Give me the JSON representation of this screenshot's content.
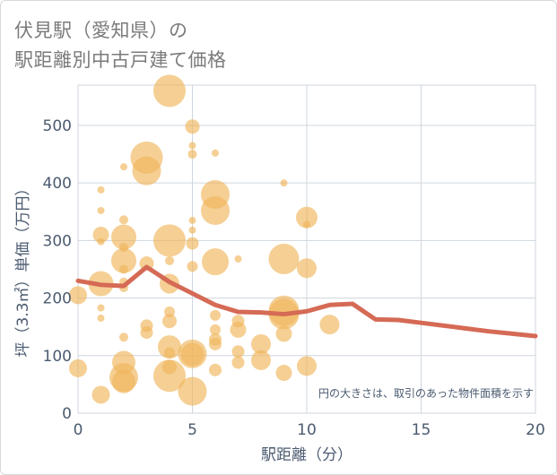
{
  "chart_data": {
    "type": "scatter",
    "title_lines": [
      "伏見駅（愛知県）の",
      "駅距離別中古戸建て価格"
    ],
    "xlabel": "駅距離（分）",
    "ylabel": "坪（3.3㎡）単価（万円）",
    "xlim": [
      0,
      20
    ],
    "ylim": [
      0,
      570
    ],
    "xticks": [
      0,
      5,
      10,
      15,
      20
    ],
    "yticks": [
      0,
      100,
      200,
      300,
      400,
      500
    ],
    "note": "円の大きさは、取引のあった物件面積を示す",
    "bubble_color": "#f0b65a",
    "line_color": "#d56a55",
    "points": [
      {
        "x": 0,
        "y": 205,
        "s": 10
      },
      {
        "x": 0,
        "y": 78,
        "s": 10
      },
      {
        "x": 1,
        "y": 388,
        "s": 4
      },
      {
        "x": 1,
        "y": 352,
        "s": 4
      },
      {
        "x": 1,
        "y": 310,
        "s": 9
      },
      {
        "x": 1,
        "y": 298,
        "s": 4
      },
      {
        "x": 1,
        "y": 225,
        "s": 14
      },
      {
        "x": 1,
        "y": 183,
        "s": 4
      },
      {
        "x": 1,
        "y": 165,
        "s": 4
      },
      {
        "x": 1,
        "y": 32,
        "s": 10
      },
      {
        "x": 2,
        "y": 428,
        "s": 4
      },
      {
        "x": 2,
        "y": 336,
        "s": 5
      },
      {
        "x": 2,
        "y": 306,
        "s": 14
      },
      {
        "x": 2,
        "y": 288,
        "s": 5
      },
      {
        "x": 2,
        "y": 265,
        "s": 14
      },
      {
        "x": 2,
        "y": 250,
        "s": 5
      },
      {
        "x": 2,
        "y": 228,
        "s": 5
      },
      {
        "x": 2,
        "y": 218,
        "s": 5
      },
      {
        "x": 2,
        "y": 132,
        "s": 5
      },
      {
        "x": 2,
        "y": 88,
        "s": 13
      },
      {
        "x": 2,
        "y": 62,
        "s": 16
      },
      {
        "x": 2,
        "y": 55,
        "s": 13
      },
      {
        "x": 3,
        "y": 444,
        "s": 18
      },
      {
        "x": 3,
        "y": 421,
        "s": 16
      },
      {
        "x": 3,
        "y": 260,
        "s": 8
      },
      {
        "x": 3,
        "y": 152,
        "s": 7
      },
      {
        "x": 3,
        "y": 140,
        "s": 7
      },
      {
        "x": 4,
        "y": 560,
        "s": 18
      },
      {
        "x": 4,
        "y": 300,
        "s": 18
      },
      {
        "x": 4,
        "y": 265,
        "s": 5
      },
      {
        "x": 4,
        "y": 225,
        "s": 11
      },
      {
        "x": 4,
        "y": 176,
        "s": 6
      },
      {
        "x": 4,
        "y": 160,
        "s": 8
      },
      {
        "x": 4,
        "y": 115,
        "s": 13
      },
      {
        "x": 4,
        "y": 105,
        "s": 6
      },
      {
        "x": 4,
        "y": 80,
        "s": 8
      },
      {
        "x": 4,
        "y": 65,
        "s": 18
      },
      {
        "x": 5,
        "y": 498,
        "s": 8
      },
      {
        "x": 5,
        "y": 465,
        "s": 4
      },
      {
        "x": 5,
        "y": 450,
        "s": 5
      },
      {
        "x": 5,
        "y": 335,
        "s": 4
      },
      {
        "x": 5,
        "y": 318,
        "s": 4
      },
      {
        "x": 5,
        "y": 295,
        "s": 7
      },
      {
        "x": 5,
        "y": 255,
        "s": 6
      },
      {
        "x": 5,
        "y": 103,
        "s": 16
      },
      {
        "x": 5,
        "y": 102,
        "s": 13
      },
      {
        "x": 5,
        "y": 38,
        "s": 16
      },
      {
        "x": 6,
        "y": 452,
        "s": 4
      },
      {
        "x": 6,
        "y": 380,
        "s": 16
      },
      {
        "x": 6,
        "y": 352,
        "s": 16
      },
      {
        "x": 6,
        "y": 263,
        "s": 15
      },
      {
        "x": 6,
        "y": 170,
        "s": 6
      },
      {
        "x": 6,
        "y": 145,
        "s": 6
      },
      {
        "x": 6,
        "y": 128,
        "s": 7
      },
      {
        "x": 6,
        "y": 120,
        "s": 7
      },
      {
        "x": 6,
        "y": 75,
        "s": 7
      },
      {
        "x": 7,
        "y": 268,
        "s": 4
      },
      {
        "x": 7,
        "y": 160,
        "s": 7
      },
      {
        "x": 7,
        "y": 145,
        "s": 9
      },
      {
        "x": 7,
        "y": 107,
        "s": 7
      },
      {
        "x": 7,
        "y": 88,
        "s": 7
      },
      {
        "x": 8,
        "y": 120,
        "s": 11
      },
      {
        "x": 8,
        "y": 92,
        "s": 11
      },
      {
        "x": 9,
        "y": 400,
        "s": 4
      },
      {
        "x": 9,
        "y": 268,
        "s": 17
      },
      {
        "x": 9,
        "y": 178,
        "s": 17
      },
      {
        "x": 9,
        "y": 172,
        "s": 17
      },
      {
        "x": 9,
        "y": 138,
        "s": 9
      },
      {
        "x": 9,
        "y": 70,
        "s": 9
      },
      {
        "x": 10,
        "y": 340,
        "s": 12
      },
      {
        "x": 10,
        "y": 328,
        "s": 4
      },
      {
        "x": 10,
        "y": 252,
        "s": 11
      },
      {
        "x": 10,
        "y": 82,
        "s": 11
      },
      {
        "x": 11,
        "y": 154,
        "s": 11
      }
    ],
    "trend": {
      "x": [
        0,
        1,
        2,
        3,
        4,
        5,
        6,
        7,
        8,
        9,
        10,
        11,
        12,
        13,
        14,
        15,
        16,
        17,
        18,
        19,
        20
      ],
      "y": [
        230,
        223,
        221,
        254,
        228,
        208,
        188,
        176,
        175,
        172,
        177,
        188,
        190,
        163,
        162,
        157,
        152,
        147,
        142,
        138,
        134
      ]
    }
  }
}
